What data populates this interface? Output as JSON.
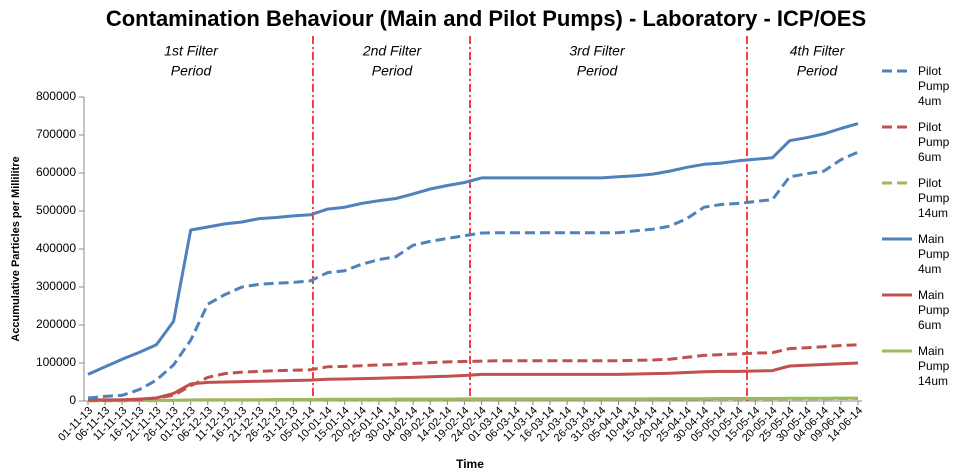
{
  "chart_data": {
    "type": "line",
    "title": "Contamination Behaviour (Main and Pilot Pumps) - Laboratory - ICP/OES",
    "x_label": "Time",
    "y_label": "Accumulative Particles per Millilitre",
    "categories": [
      "01-11-13",
      "06-11-13",
      "11-11-13",
      "16-11-13",
      "21-11-13",
      "26-11-13",
      "01-12-13",
      "06-12-13",
      "11-12-13",
      "16-12-13",
      "21-12-13",
      "26-12-13",
      "31-12-13",
      "05-01-14",
      "10-01-14",
      "15-01-14",
      "20-01-14",
      "25-01-14",
      "30-01-14",
      "04-02-14",
      "09-02-14",
      "14-02-14",
      "19-02-14",
      "24-02-14",
      "01-03-14",
      "06-03-14",
      "11-03-14",
      "16-03-14",
      "21-03-14",
      "26-03-14",
      "31-03-14",
      "05-04-14",
      "10-04-14",
      "15-04-14",
      "20-04-14",
      "25-04-14",
      "30-04-14",
      "05-05-14",
      "10-05-14",
      "15-05-14",
      "20-05-14",
      "25-05-14",
      "30-05-14",
      "04-06-14",
      "09-06-14",
      "14-06-14"
    ],
    "ylim": [
      0,
      800000
    ],
    "yticks": [
      0,
      100000,
      200000,
      300000,
      400000,
      500000,
      600000,
      700000,
      800000
    ],
    "grid": false,
    "periods": [
      {
        "lines": [
          "1st Filter",
          "Period"
        ]
      },
      {
        "lines": [
          "2nd Filter",
          "Period"
        ]
      },
      {
        "lines": [
          "3rd Filter",
          "Period"
        ]
      },
      {
        "lines": [
          "4th Filter",
          "Period"
        ]
      }
    ],
    "series": [
      {
        "name": "Pilot Pump 4um",
        "color": "#4f81bd",
        "dashed": true,
        "values": [
          8000,
          12000,
          15000,
          30000,
          55000,
          95000,
          160000,
          255000,
          280000,
          300000,
          307000,
          310000,
          312000,
          316000,
          338000,
          343000,
          360000,
          372000,
          380000,
          410000,
          420000,
          428000,
          435000,
          442000,
          443000,
          443000,
          443000,
          443000,
          443000,
          443000,
          443000,
          443000,
          448000,
          452000,
          460000,
          480000,
          510000,
          517000,
          520000,
          525000,
          530000,
          590000,
          598000,
          605000,
          635000,
          655000
        ]
      },
      {
        "name": "Pilot Pump 6um",
        "color": "#c0504d",
        "dashed": true,
        "values": [
          2000,
          2000,
          3000,
          4000,
          8000,
          15000,
          40000,
          62000,
          72000,
          76000,
          78000,
          80000,
          81000,
          82000,
          90000,
          91000,
          93000,
          95000,
          96000,
          99000,
          101000,
          103000,
          104000,
          105000,
          106000,
          106000,
          106000,
          106000,
          106000,
          106000,
          106000,
          106000,
          107000,
          108000,
          110000,
          115000,
          120000,
          122000,
          124000,
          126000,
          127000,
          138000,
          140000,
          143000,
          146000,
          148000
        ]
      },
      {
        "name": "Pilot Pump 14um",
        "color": "#9bbb59",
        "dashed": true,
        "values": [
          500,
          500,
          500,
          1000,
          1000,
          1500,
          2000,
          2500,
          2500,
          2500,
          2500,
          3000,
          3000,
          3000,
          3500,
          3500,
          3500,
          3500,
          4000,
          4000,
          4000,
          4000,
          4500,
          4500,
          4500,
          4500,
          4500,
          4500,
          4500,
          4500,
          4500,
          4500,
          4500,
          5000,
          5000,
          5000,
          5000,
          5500,
          5500,
          5500,
          5500,
          6000,
          6000,
          6000,
          6500,
          6500
        ]
      },
      {
        "name": "Main Pump 4um",
        "color": "#4f81bd",
        "dashed": false,
        "values": [
          70000,
          90000,
          110000,
          128000,
          148000,
          210000,
          450000,
          458000,
          466000,
          471000,
          480000,
          483000,
          487000,
          490000,
          505000,
          510000,
          520000,
          527000,
          533000,
          545000,
          558000,
          567000,
          575000,
          587000,
          587000,
          587000,
          587000,
          587000,
          587000,
          587000,
          587000,
          590000,
          593000,
          597000,
          605000,
          615000,
          623000,
          626000,
          632000,
          636000,
          640000,
          685000,
          693000,
          703000,
          717000,
          730000
        ]
      },
      {
        "name": "Main Pump 6um",
        "color": "#c0504d",
        "dashed": false,
        "values": [
          3000,
          3000,
          3000,
          5000,
          8000,
          20000,
          45000,
          49000,
          50000,
          51000,
          52000,
          53000,
          54000,
          55000,
          57000,
          58000,
          59000,
          60000,
          61000,
          62000,
          64000,
          65000,
          67000,
          70000,
          70000,
          70000,
          70000,
          70000,
          70000,
          70000,
          70000,
          70000,
          71000,
          72000,
          73000,
          75000,
          77000,
          78000,
          78000,
          79000,
          80000,
          92000,
          94000,
          96000,
          98000,
          100000
        ]
      },
      {
        "name": "Main Pump 14um",
        "color": "#9bbb59",
        "dashed": false,
        "values": [
          1000,
          1000,
          1000,
          1500,
          1500,
          2000,
          3000,
          3500,
          3500,
          3500,
          3500,
          4000,
          4000,
          4000,
          4500,
          4500,
          4500,
          4500,
          5000,
          5000,
          5000,
          5000,
          5500,
          5500,
          5500,
          5500,
          5500,
          5500,
          5500,
          5500,
          5500,
          5500,
          5500,
          6000,
          6000,
          6000,
          6000,
          6500,
          6500,
          6500,
          6500,
          7000,
          7000,
          7000,
          7500,
          7500
        ]
      }
    ]
  }
}
